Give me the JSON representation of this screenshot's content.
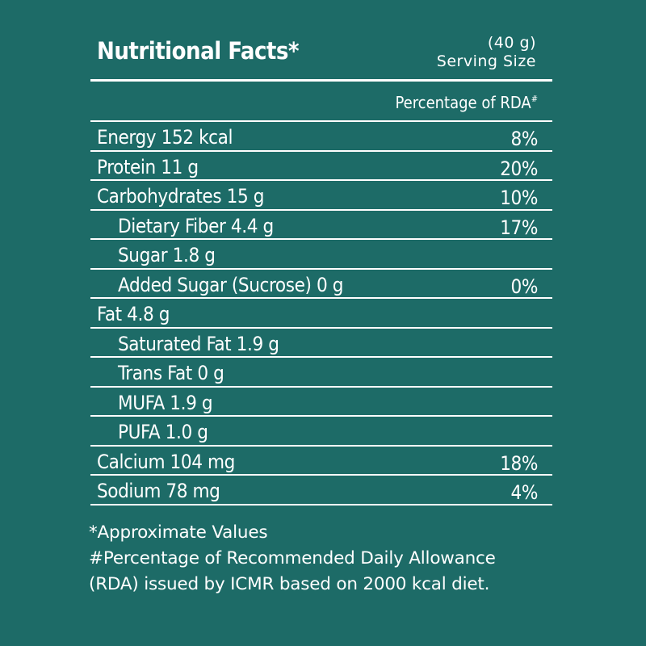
{
  "header": {
    "title": "Nutritional Facts*",
    "serving_amount": "(40 g)",
    "serving_label": "Serving Size"
  },
  "rda_header": {
    "label": "Percentage of RDA",
    "marker": "#"
  },
  "rows": [
    {
      "name": "Energy 152 kcal",
      "pct": "8%",
      "indent": false
    },
    {
      "name": "Protein 11 g",
      "pct": "20%",
      "indent": false
    },
    {
      "name": "Carbohydrates 15 g",
      "pct": "10%",
      "indent": false
    },
    {
      "name": "Dietary Fiber 4.4 g",
      "pct": "17%",
      "indent": true
    },
    {
      "name": "Sugar 1.8 g",
      "pct": "",
      "indent": true
    },
    {
      "name": "Added Sugar (Sucrose) 0 g",
      "pct": "0%",
      "indent": true
    },
    {
      "name": "Fat 4.8 g",
      "pct": "",
      "indent": false
    },
    {
      "name": "Saturated Fat 1.9 g",
      "pct": "",
      "indent": true
    },
    {
      "name": "Trans Fat 0 g",
      "pct": "",
      "indent": true
    },
    {
      "name": "MUFA 1.9 g",
      "pct": "",
      "indent": true
    },
    {
      "name": "PUFA 1.0 g",
      "pct": "",
      "indent": true
    },
    {
      "name": "Calcium 104 mg",
      "pct": "18%",
      "indent": false
    },
    {
      "name": "Sodium 78 mg",
      "pct": "4%",
      "indent": false
    }
  ],
  "footnotes": [
    "*Approximate Values",
    "#Percentage of Recommended Daily Allowance",
    "(RDA) issued by ICMR based on 2000 kcal diet."
  ],
  "colors": {
    "background": "#1d6b67",
    "text": "#ffffff"
  }
}
